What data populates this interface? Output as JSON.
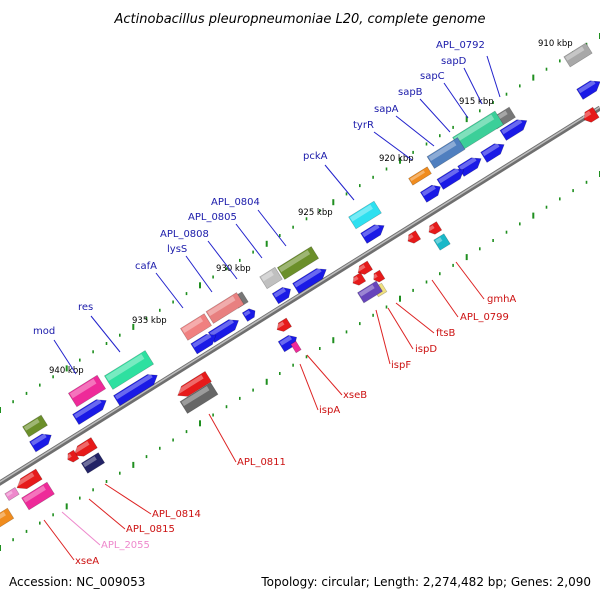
{
  "title": "Actinobacillus pleuropneumoniae L20, complete genome",
  "footer": {
    "accession": "Accession: NC_009053",
    "summary": "Topology: circular; Length: 2,274,482 bp; Genes: 2,090"
  },
  "colors": {
    "backbone": "#8a8a8a",
    "label_forward": "#1a1aaa",
    "label_reverse": "#cc1111",
    "label_pseudo": "#ee88cc",
    "tick": "#1f8f1f",
    "cds": "#1a1ae6"
  },
  "scale_marks": [
    {
      "text": "910 kbp",
      "kbp": 910
    },
    {
      "text": "915 kbp",
      "kbp": 915
    },
    {
      "text": "920 kbp",
      "kbp": 920
    },
    {
      "text": "925 kbp",
      "kbp": 925
    },
    {
      "text": "930 kbp",
      "kbp": 930
    },
    {
      "text": "935 kbp",
      "kbp": 935
    },
    {
      "text": "940 kbp",
      "kbp": 940
    }
  ],
  "gene_labels_forward": [
    {
      "text": "APL_0792"
    },
    {
      "text": "sapD"
    },
    {
      "text": "sapC"
    },
    {
      "text": "sapB"
    },
    {
      "text": "sapA"
    },
    {
      "text": "tyrR"
    },
    {
      "text": "pckA"
    },
    {
      "text": "APL_0804"
    },
    {
      "text": "APL_0805"
    },
    {
      "text": "APL_0808"
    },
    {
      "text": "lysS"
    },
    {
      "text": "cafA"
    },
    {
      "text": "res"
    },
    {
      "text": "mod"
    }
  ],
  "gene_labels_reverse": [
    {
      "text": "gmhA"
    },
    {
      "text": "APL_0799"
    },
    {
      "text": "ftsB"
    },
    {
      "text": "ispD"
    },
    {
      "text": "ispF"
    },
    {
      "text": "xseB"
    },
    {
      "text": "ispA"
    },
    {
      "text": "APL_0811"
    },
    {
      "text": "APL_0814"
    },
    {
      "text": "APL_0815"
    },
    {
      "text": "APL_2055"
    },
    {
      "text": "xseA"
    }
  ]
}
